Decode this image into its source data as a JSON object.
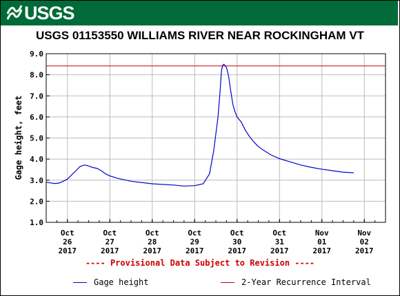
{
  "banner": {
    "logo_text": "USGS",
    "color": "#006b39"
  },
  "disclaimer": "---- Provisional Data Subject to Revision ----",
  "chart_data": {
    "type": "line",
    "title": "USGS 01153550 WILLIAMS RIVER NEAR ROCKINGHAM VT",
    "ylabel": "Gage height, feet",
    "xlabel": "",
    "ylim": [
      1.0,
      9.0
    ],
    "yticks": [
      "1.0",
      "2.0",
      "3.0",
      "4.0",
      "5.0",
      "6.0",
      "7.0",
      "8.0",
      "9.0"
    ],
    "xticks": [
      [
        "Oct",
        "26",
        "2017"
      ],
      [
        "Oct",
        "27",
        "2017"
      ],
      [
        "Oct",
        "28",
        "2017"
      ],
      [
        "Oct",
        "29",
        "2017"
      ],
      [
        "Oct",
        "30",
        "2017"
      ],
      [
        "Oct",
        "31",
        "2017"
      ],
      [
        "Nov",
        "01",
        "2017"
      ],
      [
        "Nov",
        "02",
        "2017"
      ]
    ],
    "x_unit": "days from 2017-10-26 00:00",
    "grid": true,
    "series": [
      {
        "name": "Gage height",
        "color": "#0000cc",
        "x": [
          -0.5,
          -0.4,
          -0.3,
          -0.2,
          -0.1,
          0.0,
          0.1,
          0.2,
          0.3,
          0.4,
          0.45,
          0.5,
          0.6,
          0.7,
          0.8,
          0.9,
          1.0,
          1.2,
          1.5,
          2.0,
          2.5,
          2.75,
          3.0,
          3.2,
          3.35,
          3.45,
          3.55,
          3.6,
          3.63,
          3.66,
          3.69,
          3.72,
          3.75,
          3.8,
          3.85,
          3.9,
          3.95,
          4.0,
          4.05,
          4.1,
          4.2,
          4.3,
          4.4,
          4.5,
          4.6,
          4.8,
          5.0,
          5.25,
          5.5,
          5.75,
          6.0,
          6.25,
          6.5,
          6.75
        ],
        "y": [
          2.9,
          2.87,
          2.84,
          2.86,
          2.95,
          3.05,
          3.25,
          3.45,
          3.65,
          3.72,
          3.7,
          3.67,
          3.6,
          3.56,
          3.45,
          3.3,
          3.2,
          3.08,
          2.95,
          2.83,
          2.77,
          2.72,
          2.74,
          2.83,
          3.3,
          4.4,
          6.0,
          7.2,
          8.15,
          8.45,
          8.5,
          8.42,
          8.35,
          7.95,
          7.25,
          6.6,
          6.25,
          6.0,
          5.88,
          5.75,
          5.35,
          5.05,
          4.8,
          4.6,
          4.45,
          4.2,
          4.02,
          3.87,
          3.72,
          3.61,
          3.52,
          3.45,
          3.38,
          3.35
        ]
      }
    ],
    "reference_lines": [
      {
        "name": "2-Year Recurrence Interval",
        "y": 8.42,
        "color": "#cc0000"
      }
    ]
  }
}
